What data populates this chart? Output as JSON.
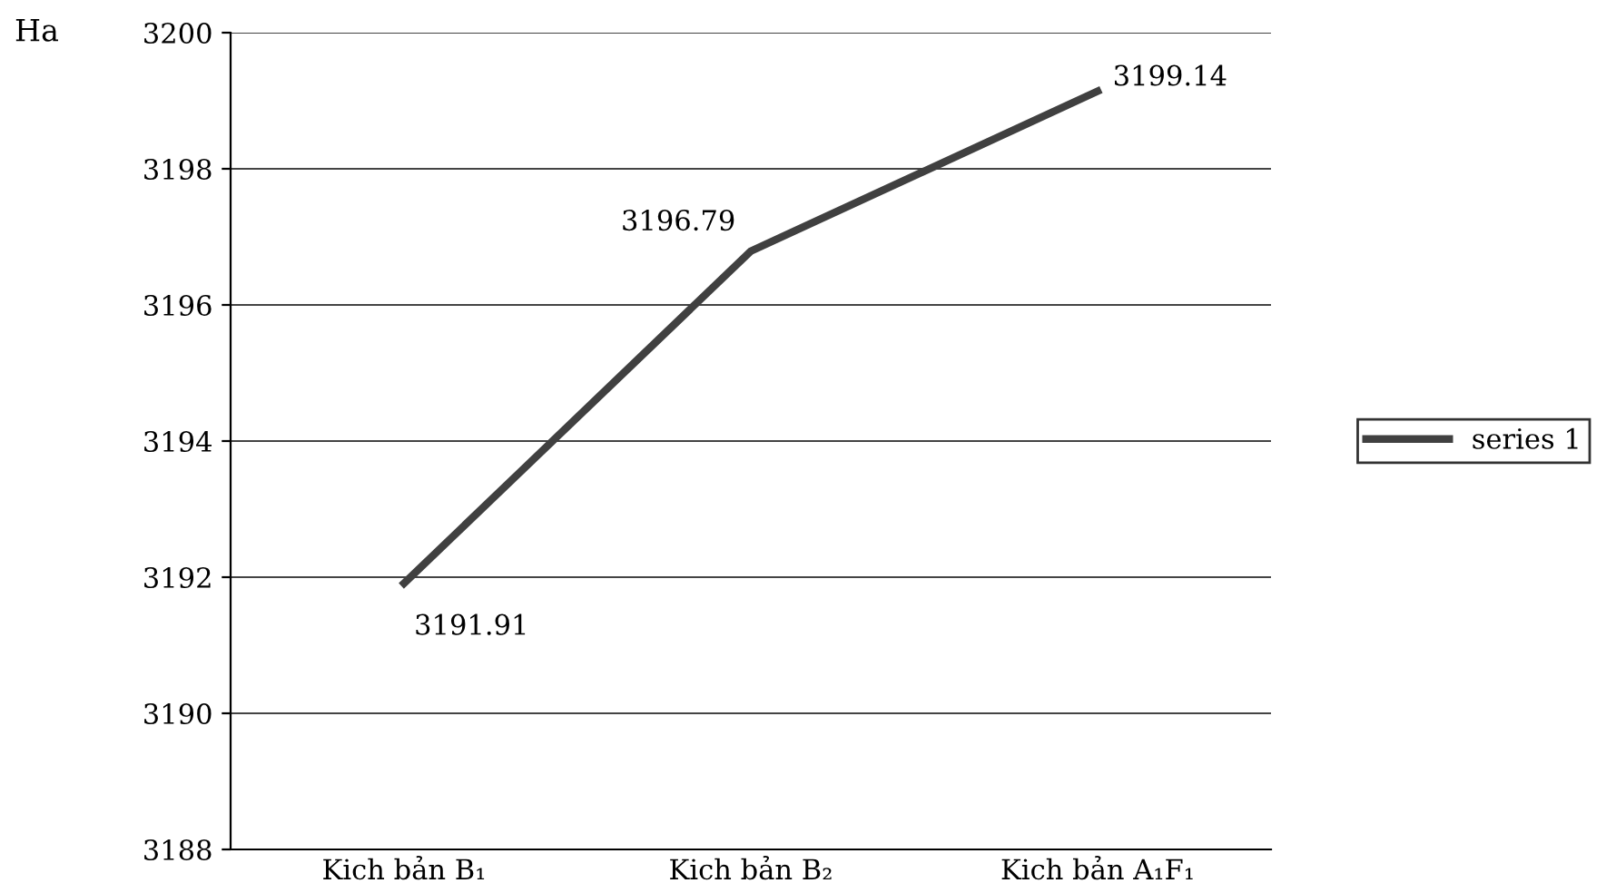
{
  "chart_data": {
    "type": "line",
    "ylabel": "Ha",
    "categories": [
      "Kich bản B₁",
      "Kich bản B₂",
      "Kich bản A₁F₁"
    ],
    "series": [
      {
        "name": "series 1",
        "color": "#404040",
        "values": [
          3191.91,
          3196.79,
          3199.14
        ]
      }
    ],
    "ylim": [
      3188,
      3200
    ],
    "yticks": [
      3188,
      3190,
      3192,
      3194,
      3196,
      3198,
      3200
    ],
    "grid": "y",
    "legend": "right",
    "data_labels": true,
    "marker": "none",
    "line_style": "solid"
  }
}
